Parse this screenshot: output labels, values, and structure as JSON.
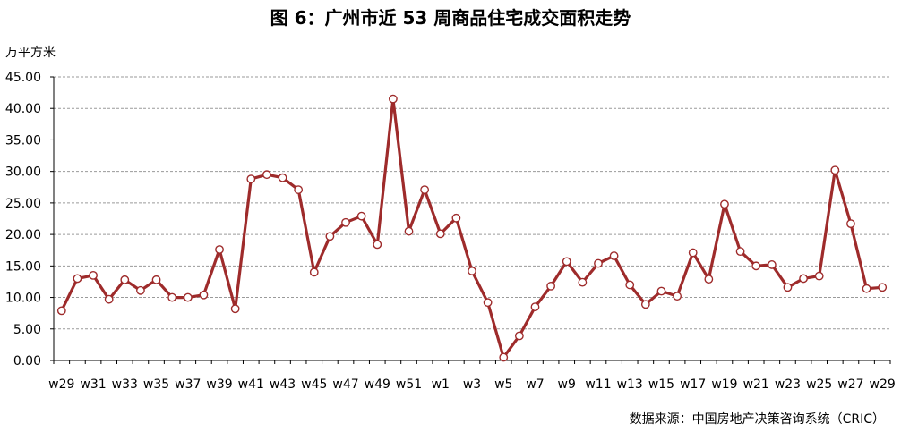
{
  "title": "图 6：广州市近 53 周商品住宅成交面积走势",
  "source": "数据来源：中国房地产决策咨询系统（CRIC）",
  "colors": {
    "line": "#9e2b2b",
    "grid": "#9a9a9a",
    "marker_fill": "#ffffff"
  },
  "chart_data": {
    "type": "line",
    "title": "图 6：广州市近 53 周商品住宅成交面积走势",
    "ylabel": "万平方米",
    "xlabel": "",
    "ylim": [
      0,
      45
    ],
    "yticks": [
      "0.00",
      "5.00",
      "10.00",
      "15.00",
      "20.00",
      "25.00",
      "30.00",
      "35.00",
      "40.00",
      "45.00"
    ],
    "grid": "horizontal",
    "categories": [
      "w29",
      "w30",
      "w31",
      "w32",
      "w33",
      "w34",
      "w35",
      "w36",
      "w37",
      "w38",
      "w39",
      "w40",
      "w41",
      "w42",
      "w43",
      "w44",
      "w45",
      "w46",
      "w47",
      "w48",
      "w49",
      "w50",
      "w51",
      "w52",
      "w1",
      "w2",
      "w3",
      "w4",
      "w5",
      "w6",
      "w7",
      "w8",
      "w9",
      "w10",
      "w11",
      "w12",
      "w13",
      "w14",
      "w15",
      "w16",
      "w17",
      "w18",
      "w19",
      "w20",
      "w21",
      "w22",
      "w23",
      "w24",
      "w25",
      "w26",
      "w27",
      "w28",
      "w29"
    ],
    "tick_labels": [
      "w29",
      "w31",
      "w33",
      "w35",
      "w37",
      "w39",
      "w41",
      "w43",
      "w45",
      "w47",
      "w49",
      "w51",
      "w1",
      "w3",
      "w5",
      "w7",
      "w9",
      "w11",
      "w13",
      "w15",
      "w17",
      "w19",
      "w21",
      "w23",
      "w25",
      "w27",
      "w29"
    ],
    "values": [
      7.9,
      13.0,
      13.5,
      9.7,
      12.8,
      11.1,
      12.8,
      10.0,
      10.0,
      10.4,
      17.6,
      8.2,
      28.8,
      29.5,
      29.0,
      27.1,
      14.0,
      19.7,
      21.9,
      22.9,
      18.4,
      41.5,
      20.5,
      27.1,
      20.1,
      22.6,
      14.2,
      9.2,
      0.5,
      3.9,
      8.5,
      11.8,
      15.7,
      12.4,
      15.4,
      16.6,
      12.0,
      8.9,
      11.0,
      10.2,
      17.1,
      12.9,
      24.8,
      17.3,
      15.0,
      15.2,
      11.6,
      13.0,
      13.4,
      30.2,
      21.7,
      11.4,
      11.6
    ]
  }
}
